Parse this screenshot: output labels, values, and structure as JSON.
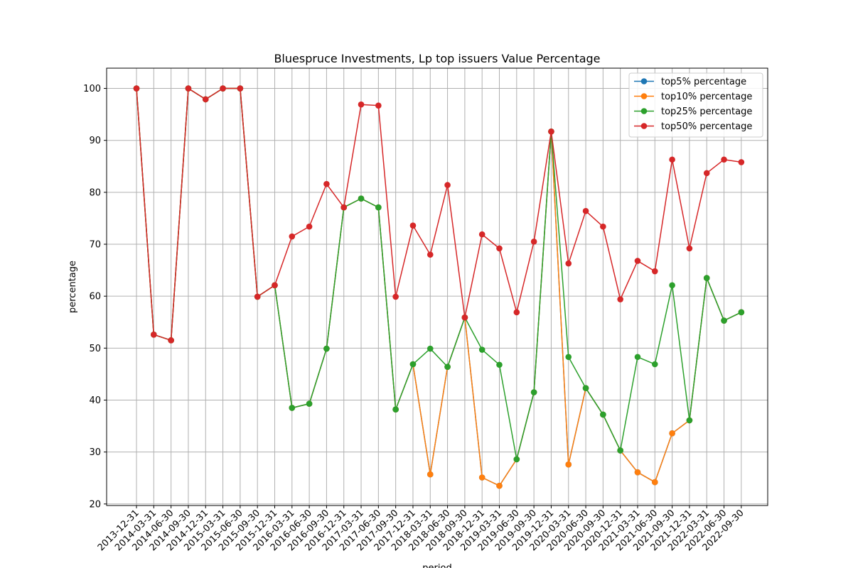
{
  "chart_data": {
    "type": "line",
    "title": "Bluespruce Investments, Lp top issuers Value Percentage",
    "xlabel": "period",
    "ylabel": "percentage",
    "ylim": [
      19.7,
      103.9
    ],
    "yticks": [
      20,
      30,
      40,
      50,
      60,
      70,
      80,
      90,
      100
    ],
    "grid": true,
    "legend_position": "top-right",
    "categories": [
      "2013-12-31",
      "2014-03-31",
      "2014-06-30",
      "2014-09-30",
      "2014-12-31",
      "2015-03-31",
      "2015-06-30",
      "2015-09-30",
      "2015-12-31",
      "2016-03-31",
      "2016-06-30",
      "2016-09-30",
      "2016-12-31",
      "2017-03-31",
      "2017-06-30",
      "2017-09-30",
      "2017-12-31",
      "2018-03-31",
      "2018-06-30",
      "2018-09-30",
      "2018-12-31",
      "2019-03-31",
      "2019-06-30",
      "2019-09-30",
      "2019-12-31",
      "2020-03-31",
      "2020-06-30",
      "2020-09-30",
      "2020-12-31",
      "2021-03-31",
      "2021-06-30",
      "2021-09-30",
      "2021-12-31",
      "2022-03-31",
      "2022-06-30",
      "2022-09-30"
    ],
    "series": [
      {
        "name": "top5% percentage",
        "color": "#1f77b4",
        "values": [
          100,
          52.6,
          51.5,
          100,
          97.9,
          100,
          100,
          59.9,
          62.1,
          38.5,
          39.3,
          49.9,
          77.1,
          78.8,
          77.1,
          38.2,
          46.9,
          25.7,
          46.4,
          55.9,
          25.1,
          23.5,
          28.6,
          41.5,
          91.7,
          27.6,
          42.3,
          37.2,
          30.3,
          26.1,
          24.2,
          33.6,
          36.1,
          63.5,
          55.3,
          56.9
        ]
      },
      {
        "name": "top10% percentage",
        "color": "#ff7f0e",
        "values": [
          100,
          52.6,
          51.5,
          100,
          97.9,
          100,
          100,
          59.9,
          62.1,
          38.5,
          39.3,
          49.9,
          77.1,
          78.8,
          77.1,
          38.2,
          46.9,
          25.7,
          46.4,
          55.9,
          25.1,
          23.5,
          28.6,
          41.5,
          91.7,
          27.6,
          42.3,
          37.2,
          30.3,
          26.1,
          24.2,
          33.6,
          36.1,
          63.5,
          55.3,
          56.9
        ]
      },
      {
        "name": "top25% percentage",
        "color": "#2ca02c",
        "values": [
          100,
          52.6,
          51.5,
          100,
          97.9,
          100,
          100,
          59.9,
          62.1,
          38.5,
          39.3,
          49.9,
          77.1,
          78.8,
          77.1,
          38.2,
          46.9,
          49.9,
          46.4,
          55.9,
          49.7,
          46.8,
          28.6,
          41.5,
          91.7,
          48.3,
          42.3,
          37.2,
          30.3,
          48.3,
          46.9,
          62.1,
          36.1,
          63.5,
          55.3,
          56.9
        ]
      },
      {
        "name": "top50% percentage",
        "color": "#d62728",
        "values": [
          100,
          52.6,
          51.5,
          100,
          97.9,
          100,
          100,
          59.9,
          62.1,
          71.5,
          73.4,
          81.6,
          77.1,
          96.9,
          96.7,
          59.9,
          73.6,
          68.0,
          81.4,
          55.9,
          71.9,
          69.2,
          56.9,
          70.5,
          91.7,
          66.3,
          76.4,
          73.4,
          59.4,
          66.8,
          64.8,
          86.3,
          69.2,
          83.7,
          86.3,
          85.8
        ]
      }
    ]
  }
}
